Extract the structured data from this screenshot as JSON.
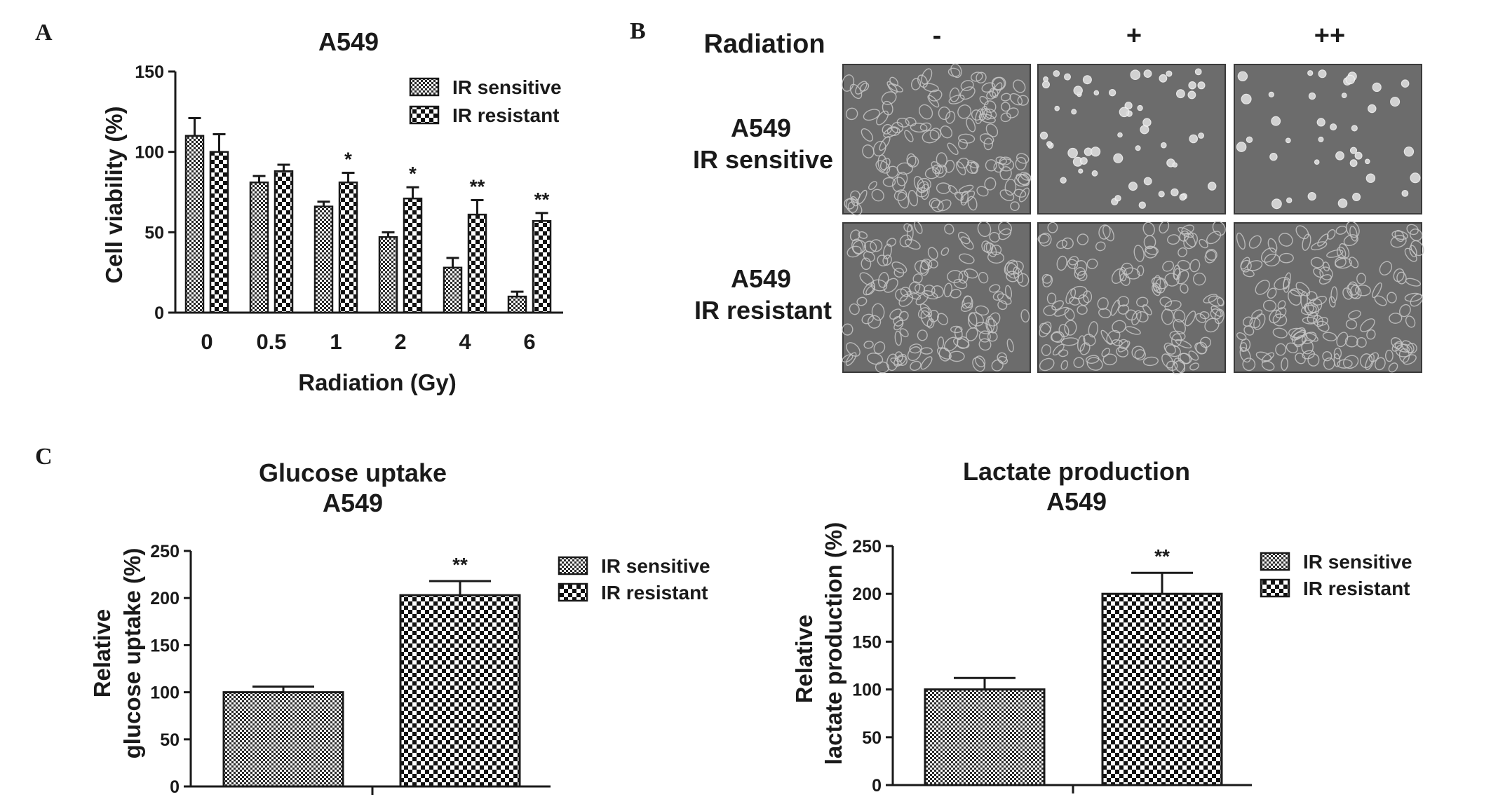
{
  "panel_labels": {
    "a": "A",
    "b": "B",
    "c": "C"
  },
  "colors": {
    "ink": "#1a1a1a",
    "micrograph_bg": "#6c6c6c",
    "micrograph_cell": "#c6c6c6"
  },
  "chart_data": [
    {
      "id": "viability",
      "type": "bar",
      "title": "A549",
      "xlabel": "Radiation (Gy)",
      "ylabel": "Cell viability (%)",
      "categories": [
        "0",
        "0.5",
        "1",
        "2",
        "4",
        "6"
      ],
      "ylim": [
        0,
        150
      ],
      "yticks": [
        0,
        50,
        100,
        150
      ],
      "series": [
        {
          "name": "IR sensitive",
          "pattern": "fine-checker",
          "values": [
            110,
            81,
            66,
            47,
            28,
            10
          ],
          "errors": [
            11,
            4,
            3,
            3,
            6,
            3
          ]
        },
        {
          "name": "IR resistant",
          "pattern": "coarse-checker",
          "values": [
            100,
            88,
            81,
            71,
            61,
            57
          ],
          "errors": [
            11,
            4,
            6,
            7,
            9,
            5
          ]
        }
      ],
      "significance": [
        "",
        "",
        "*",
        "*",
        "**",
        "**"
      ],
      "legend_position": "top-right",
      "grid": false
    },
    {
      "id": "glucose",
      "type": "bar",
      "title": "Glucose uptake",
      "subtitle": "A549",
      "xlabel": "",
      "ylabel": [
        "Relative",
        "glucose uptake (%)"
      ],
      "categories": [
        "IR sensitive",
        "IR resistant"
      ],
      "ylim": [
        0,
        250
      ],
      "yticks": [
        0,
        50,
        100,
        150,
        200,
        250
      ],
      "values": [
        100,
        203
      ],
      "errors": [
        6,
        15
      ],
      "significance": [
        "",
        "**"
      ],
      "legend_position": "top-right",
      "grid": false
    },
    {
      "id": "lactate",
      "type": "bar",
      "title": "Lactate production",
      "subtitle": "A549",
      "xlabel": "",
      "ylabel": [
        "Relative",
        "lactate production (%)"
      ],
      "categories": [
        "IR sensitive",
        "IR resistant"
      ],
      "ylim": [
        0,
        250
      ],
      "yticks": [
        0,
        50,
        100,
        150,
        200,
        250
      ],
      "values": [
        100,
        200
      ],
      "errors": [
        12,
        22
      ],
      "significance": [
        "",
        "**"
      ],
      "legend_position": "top-right",
      "grid": false
    }
  ],
  "micrographs": {
    "row_header": "Radiation",
    "columns": [
      "-",
      "+",
      "++"
    ],
    "rows": [
      {
        "line1": "A549",
        "line2": "IR sensitive",
        "images": [
          "dense-confluent",
          "sparse-rounded",
          "sparse-rounded"
        ]
      },
      {
        "line1": "A549",
        "line2": "IR resistant",
        "images": [
          "dense-confluent",
          "dense-confluent",
          "dense-confluent"
        ]
      }
    ]
  }
}
